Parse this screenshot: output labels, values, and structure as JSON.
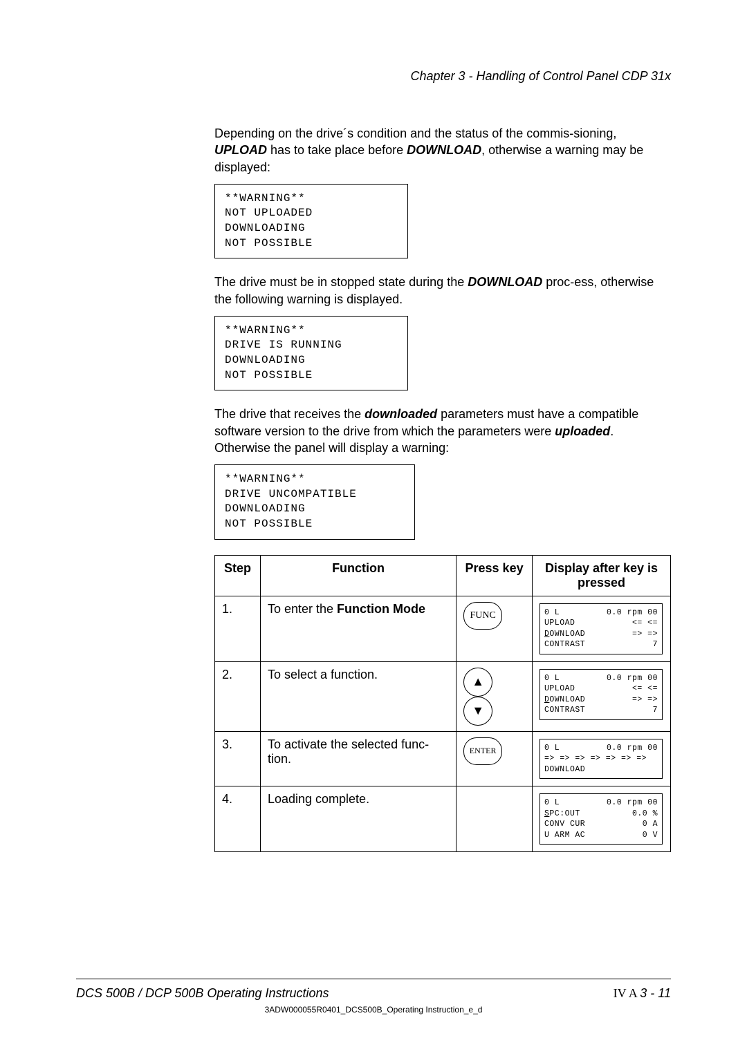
{
  "header": {
    "text": "Chapter 3 - Handling of Control Panel CDP 31x"
  },
  "body": {
    "para1_a": "Depending on the drive´s condition and the status of the commis-sioning, ",
    "para1_b": "UPLOAD",
    "para1_c": " has to take place before ",
    "para1_d": "DOWNLOAD",
    "para1_e": ", otherwise a warning may be displayed:",
    "warn1": {
      "l1": "**WARNING**",
      "l2": "NOT UPLOADED",
      "l3": "DOWNLOADING",
      "l4": "NOT POSSIBLE"
    },
    "para2_a": "The drive must be in stopped state during the ",
    "para2_b": "DOWNLOAD",
    "para2_c": " proc-ess, otherwise the following warning is displayed.",
    "warn2": {
      "l1": "**WARNING**",
      "l2": "DRIVE IS RUNNING",
      "l3": "DOWNLOADING",
      "l4": "NOT POSSIBLE"
    },
    "para3_a": "The drive that receives the ",
    "para3_b": "downloaded",
    "para3_c": " parameters must have a compatible software version to the drive from which the parameters were ",
    "para3_d": "uploaded",
    "para3_e": ". Otherwise the panel will display a warning:",
    "warn3": {
      "l1": "**WARNING**",
      "l2": "DRIVE UNCOMPATIBLE",
      "l3": "DOWNLOADING",
      "l4": "NOT POSSIBLE"
    }
  },
  "table": {
    "headers": {
      "step": "Step",
      "function": "Function",
      "presskey": "Press key",
      "display": "Display after key is pressed"
    },
    "rows": {
      "r1": {
        "step": "1.",
        "func_a": "To enter the ",
        "func_b": "Function Mode",
        "key_label": "FUNC",
        "disp": {
          "l1a": "0 L",
          "l1b": "0.0 rpm 00",
          "l2a": "UPLOAD",
          "l2b": "<= <=",
          "l3a": "DOWNLOAD",
          "l3b": "=> =>",
          "l4a": "CONTRAST",
          "l4b": "7"
        }
      },
      "r2": {
        "step": "2.",
        "func": "To select a function.",
        "disp": {
          "l1a": "0 L",
          "l1b": "0.0 rpm 00",
          "l2a": "UPLOAD",
          "l2b": "<= <=",
          "l3a": "DOWNLOAD",
          "l3b": "=> =>",
          "l4a": "CONTRAST",
          "l4b": "7"
        }
      },
      "r3": {
        "step": "3.",
        "func": "To activate the selected func-tion.",
        "key_label": "ENTER",
        "disp": {
          "l1a": "0 L",
          "l1b": "0.0 rpm 00",
          "l2": "",
          "l3": "=> => => => => => =>",
          "l4": "DOWNLOAD"
        }
      },
      "r4": {
        "step": "4.",
        "func": "Loading complete.",
        "disp": {
          "l1a": "0 L",
          "l1b": "0.0 rpm 00",
          "l2a": "SPC:OUT",
          "l2b": "0.0 %",
          "l3a": "CONV CUR",
          "l3b": "0 A",
          "l4a": "U ARM AC",
          "l4b": "0 V"
        }
      }
    }
  },
  "footer": {
    "left": "DCS 500B / DCP 500B Operating Instructions",
    "right_roman": "IV A ",
    "right_num": "3 - 11",
    "docid": "3ADW000055R0401_DCS500B_Operating Instruction_e_d"
  }
}
